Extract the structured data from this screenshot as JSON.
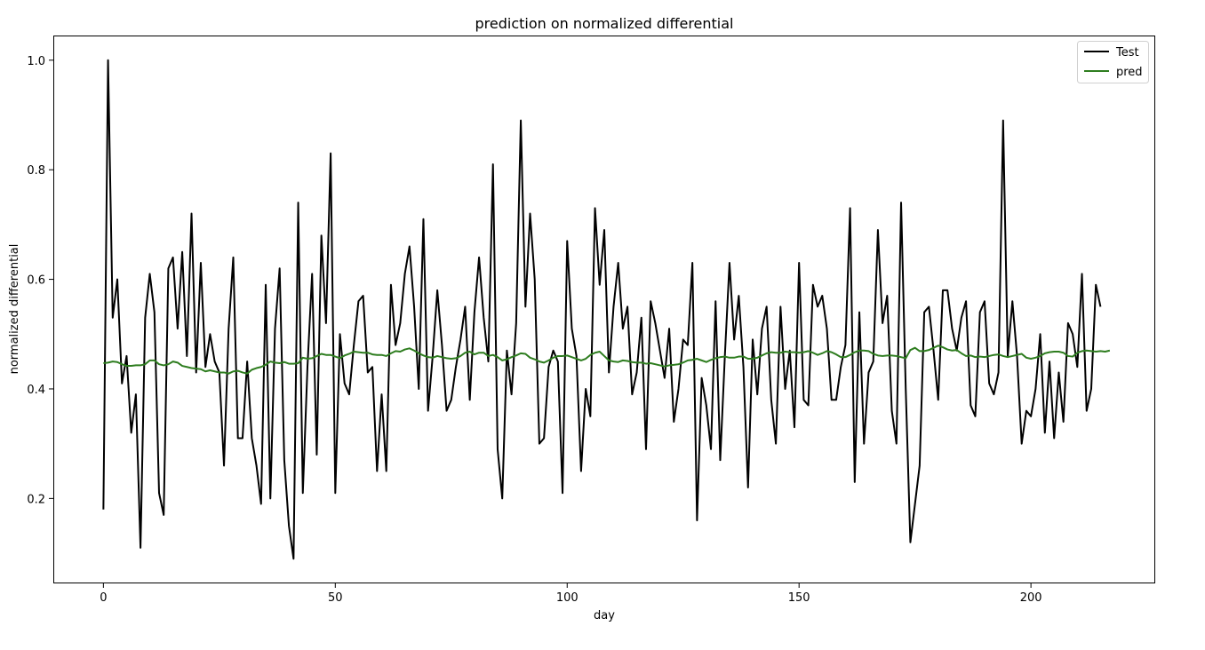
{
  "chart_data": {
    "type": "line",
    "title": "prediction on normalized differential",
    "xlabel": "day",
    "ylabel": "normalized differential",
    "xlim": [
      -10.8,
      226.8
    ],
    "ylim": [
      0.045,
      1.045
    ],
    "xticks": [
      0,
      50,
      100,
      150,
      200
    ],
    "yticks": [
      0.2,
      0.4,
      0.6,
      0.8,
      1.0
    ],
    "ytick_labels": [
      "0.2",
      "0.4",
      "0.6",
      "0.8",
      "1.0"
    ],
    "grid": false,
    "legend": "top-right",
    "series": [
      {
        "name": "Test",
        "color": "#000000",
        "values": [
          0.18,
          1.0,
          0.53,
          0.6,
          0.41,
          0.46,
          0.32,
          0.39,
          0.11,
          0.53,
          0.61,
          0.54,
          0.21,
          0.17,
          0.62,
          0.64,
          0.51,
          0.65,
          0.46,
          0.72,
          0.43,
          0.63,
          0.44,
          0.5,
          0.45,
          0.43,
          0.26,
          0.51,
          0.64,
          0.31,
          0.31,
          0.45,
          0.31,
          0.26,
          0.19,
          0.59,
          0.2,
          0.51,
          0.62,
          0.27,
          0.15,
          0.09,
          0.74,
          0.21,
          0.44,
          0.61,
          0.28,
          0.68,
          0.52,
          0.83,
          0.21,
          0.5,
          0.41,
          0.39,
          0.48,
          0.56,
          0.57,
          0.43,
          0.44,
          0.25,
          0.39,
          0.25,
          0.59,
          0.48,
          0.52,
          0.61,
          0.66,
          0.55,
          0.4,
          0.71,
          0.36,
          0.46,
          0.58,
          0.48,
          0.36,
          0.38,
          0.44,
          0.49,
          0.55,
          0.38,
          0.54,
          0.64,
          0.53,
          0.45,
          0.81,
          0.29,
          0.2,
          0.47,
          0.39,
          0.52,
          0.89,
          0.55,
          0.72,
          0.6,
          0.3,
          0.31,
          0.44,
          0.47,
          0.45,
          0.21,
          0.67,
          0.51,
          0.46,
          0.25,
          0.4,
          0.35,
          0.73,
          0.59,
          0.69,
          0.43,
          0.55,
          0.63,
          0.51,
          0.55,
          0.39,
          0.43,
          0.53,
          0.29,
          0.56,
          0.52,
          0.47,
          0.42,
          0.51,
          0.34,
          0.4,
          0.49,
          0.48,
          0.63,
          0.16,
          0.42,
          0.37,
          0.29,
          0.56,
          0.27,
          0.46,
          0.63,
          0.49,
          0.57,
          0.44,
          0.22,
          0.49,
          0.39,
          0.51,
          0.55,
          0.38,
          0.3,
          0.55,
          0.4,
          0.47,
          0.33,
          0.63,
          0.38,
          0.37,
          0.59,
          0.55,
          0.57,
          0.51,
          0.38,
          0.38,
          0.44,
          0.48,
          0.73,
          0.23,
          0.54,
          0.3,
          0.43,
          0.45,
          0.69,
          0.52,
          0.57,
          0.36,
          0.3,
          0.74,
          0.4,
          0.12,
          0.19,
          0.26,
          0.54,
          0.55,
          0.47,
          0.38,
          0.58,
          0.58,
          0.51,
          0.47,
          0.53,
          0.56,
          0.37,
          0.35,
          0.54,
          0.56,
          0.41,
          0.39,
          0.43,
          0.89,
          0.46,
          0.56,
          0.46,
          0.3,
          0.36,
          0.35,
          0.4,
          0.5,
          0.32,
          0.45,
          0.31,
          0.43,
          0.34,
          0.52,
          0.5,
          0.44,
          0.61,
          0.36,
          0.4,
          0.59,
          0.55
        ]
      },
      {
        "name": "pred",
        "color": "#2e7d1f",
        "values": [
          0.447,
          0.448,
          0.45,
          0.449,
          0.445,
          0.442,
          0.442,
          0.443,
          0.443,
          0.445,
          0.452,
          0.452,
          0.445,
          0.443,
          0.445,
          0.45,
          0.448,
          0.442,
          0.44,
          0.438,
          0.437,
          0.436,
          0.432,
          0.434,
          0.432,
          0.43,
          0.43,
          0.428,
          0.432,
          0.433,
          0.43,
          0.428,
          0.435,
          0.438,
          0.44,
          0.444,
          0.45,
          0.448,
          0.447,
          0.449,
          0.446,
          0.446,
          0.447,
          0.457,
          0.455,
          0.456,
          0.46,
          0.464,
          0.462,
          0.462,
          0.459,
          0.456,
          0.461,
          0.464,
          0.468,
          0.467,
          0.466,
          0.466,
          0.463,
          0.462,
          0.462,
          0.46,
          0.465,
          0.469,
          0.468,
          0.472,
          0.474,
          0.47,
          0.465,
          0.461,
          0.458,
          0.457,
          0.46,
          0.458,
          0.456,
          0.455,
          0.456,
          0.46,
          0.466,
          0.468,
          0.463,
          0.466,
          0.466,
          0.46,
          0.462,
          0.458,
          0.452,
          0.454,
          0.458,
          0.461,
          0.465,
          0.464,
          0.457,
          0.454,
          0.45,
          0.448,
          0.452,
          0.457,
          0.46,
          0.46,
          0.461,
          0.458,
          0.455,
          0.452,
          0.455,
          0.462,
          0.466,
          0.468,
          0.46,
          0.452,
          0.45,
          0.449,
          0.452,
          0.451,
          0.449,
          0.448,
          0.448,
          0.446,
          0.447,
          0.445,
          0.443,
          0.441,
          0.443,
          0.444,
          0.445,
          0.448,
          0.452,
          0.453,
          0.455,
          0.452,
          0.449,
          0.453,
          0.456,
          0.458,
          0.459,
          0.457,
          0.457,
          0.459,
          0.459,
          0.455,
          0.455,
          0.457,
          0.461,
          0.465,
          0.467,
          0.466,
          0.466,
          0.468,
          0.467,
          0.467,
          0.466,
          0.467,
          0.469,
          0.466,
          0.462,
          0.465,
          0.469,
          0.467,
          0.463,
          0.458,
          0.458,
          0.462,
          0.467,
          0.47,
          0.47,
          0.469,
          0.464,
          0.461,
          0.46,
          0.461,
          0.461,
          0.46,
          0.458,
          0.456,
          0.471,
          0.475,
          0.469,
          0.469,
          0.471,
          0.475,
          0.479,
          0.476,
          0.472,
          0.47,
          0.471,
          0.465,
          0.46,
          0.461,
          0.458,
          0.459,
          0.458,
          0.46,
          0.462,
          0.463,
          0.46,
          0.458,
          0.46,
          0.462,
          0.464,
          0.457,
          0.455,
          0.457,
          0.46,
          0.465,
          0.467,
          0.468,
          0.468,
          0.466,
          0.46,
          0.459,
          0.466,
          0.469,
          0.47,
          0.469,
          0.468,
          0.469,
          0.468,
          0.47
        ]
      }
    ]
  }
}
